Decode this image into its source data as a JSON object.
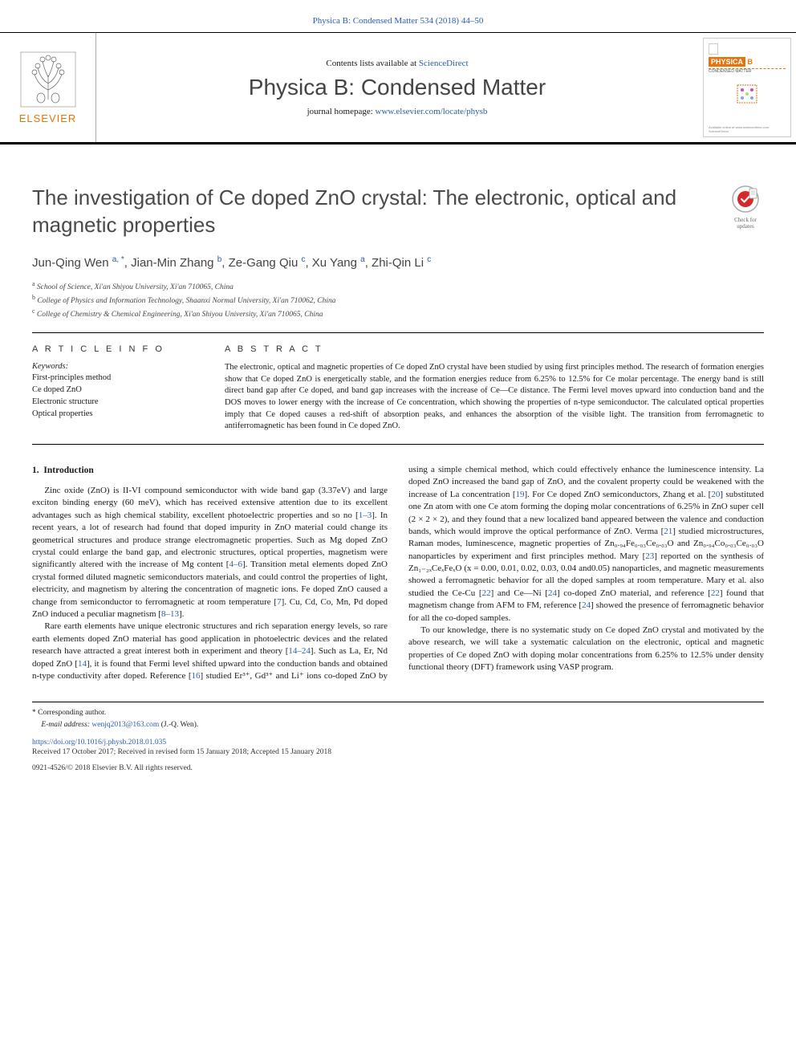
{
  "journal": {
    "reference_line": "Physica B: Condensed Matter 534 (2018) 44–50",
    "contents_prefix": "Contents lists available at ",
    "contents_link": "ScienceDirect",
    "name": "Physica B: Condensed Matter",
    "homepage_prefix": "journal homepage: ",
    "homepage_url": "www.elsevier.com/locate/physb",
    "publisher": "ELSEVIER",
    "cover_label": "PHYSICA"
  },
  "crossmark": {
    "label": "Check for updates"
  },
  "article": {
    "title": "The investigation of Ce doped ZnO crystal: The electronic, optical and magnetic properties",
    "authors_html": "Jun-Qing Wen <sup>a, *</sup>, Jian-Min Zhang <sup>b</sup>, Ze-Gang Qiu <sup>c</sup>, Xu Yang <sup>a</sup>, Zhi-Qin Li <sup>c</sup>",
    "affiliations": [
      {
        "sup": "a",
        "text": "School of Science, Xi'an Shiyou University, Xi'an 710065, China"
      },
      {
        "sup": "b",
        "text": "College of Physics and Information Technology, Shaanxi Normal University, Xi'an 710062, China"
      },
      {
        "sup": "c",
        "text": "College of Chemistry & Chemical Engineering, Xi'an Shiyou University, Xi'an 710065, China"
      }
    ]
  },
  "info": {
    "heading": "A R T I C L E   I N F O",
    "keywords_label": "Keywords:",
    "keywords": [
      "First-principles method",
      "Ce doped ZnO",
      "Electronic structure",
      "Optical properties"
    ]
  },
  "abstract": {
    "heading": "A B S T R A C T",
    "text": "The electronic, optical and magnetic properties of Ce doped ZnO crystal have been studied by using first principles method. The research of formation energies show that Ce doped ZnO is energetically stable, and the formation energies reduce from 6.25% to 12.5% for Ce molar percentage. The energy band is still direct band gap after Ce doped, and band gap increases with the increase of Ce—Ce distance. The Fermi level moves upward into conduction band and the DOS moves to lower energy with the increase of Ce concentration, which showing the properties of n-type semiconductor. The calculated optical properties imply that Ce doped causes a red-shift of absorption peaks, and enhances the absorption of the visible light. The transition from ferromagnetic to antiferromagnetic has been found in Ce doped ZnO."
  },
  "body": {
    "section_number": "1.",
    "section_title": "Introduction",
    "col1": {
      "p1_pre": "Zinc oxide (ZnO) is II-VI compound semiconductor with wide band gap (3.37eV) and large exciton binding energy (60 meV), which has received extensive attention due to its excellent advantages such as high chemical stability, excellent photoelectric properties and so no [",
      "p1_ref1": "1–3",
      "p1_mid1": "]. In recent years, a lot of research had found that doped impurity in ZnO material could change its geometrical structures and produce strange electromagnetic properties. Such as Mg doped ZnO crystal could enlarge the band gap, and electronic structures, optical properties, magnetism were significantly altered with the increase of Mg content [",
      "p1_ref2": "4–6",
      "p1_mid2": "]. Transition metal elements doped ZnO crystal formed diluted magnetic semiconductors materials, and could control the properties of light, electricity, and magnetism by altering the concentration of magnetic ions. Fe doped ZnO caused a change from semiconductor to ferromagnetic at room temperature [",
      "p1_ref3": "7",
      "p1_mid3": "]. Cu, Cd, Co, Mn, Pd doped ZnO induced a peculiar magnetism [",
      "p1_ref4": "8–13",
      "p1_post": "].",
      "p2_pre": "Rare earth elements have unique electronic structures and rich separation energy levels, so rare earth elements doped ZnO material has good application in photoelectric devices and the related research have attracted a great interest both in experiment and theory [",
      "p2_ref1": "14–24",
      "p2_mid1": "]. Such as La, Er, Nd doped ZnO [",
      "p2_ref2": "14",
      "p2_mid2": "], it is found that Fermi level shifted upward into the conduction bands and obtained n-type conductivity after doped. Reference [",
      "p2_ref3": "16",
      "p2_post": "] studied Er³⁺, Gd³⁺ and Li⁺ ions co-doped ZnO by using a"
    },
    "col2": {
      "p1_pre": "simple chemical method, which could effectively enhance the luminescence intensity. La doped ZnO increased the band gap of ZnO, and the covalent property could be weakened with the increase of La concentration [",
      "p1_ref1": "19",
      "p1_mid1": "]. For Ce doped ZnO semiconductors, Zhang et al. [",
      "p1_ref2": "20",
      "p1_mid2": "] substituted one Zn atom with one Ce atom forming the doping molar concentrations of 6.25% in ZnO super cell (2 × 2 × 2), and they found that a new localized band appeared between the valence and conduction bands, which would improve the optical performance of ZnO. Verma [",
      "p1_ref3": "21",
      "p1_mid3": "] studied microstructures, Raman modes, luminescence, magnetic properties of Zn₀.₉₄Fe₀.₀₃Ce₀.₀₃O and Zn₀.₉₄Co₀.₀₃Ce₀.₀₃O nanoparticles by experiment and first principles method. Mary [",
      "p1_ref4": "23",
      "p1_mid4": "] reported on the synthesis of Zn₁₋₂ₓCeₓFeₓO (x = 0.00, 0.01, 0.02, 0.03, 0.04 and0.05) nanoparticles, and magnetic measurements showed a ferromagnetic behavior for all the doped samples at room temperature. Mary et al. also studied the Ce-Cu [",
      "p1_ref5": "22",
      "p1_mid5": "] and Ce—Ni [",
      "p1_ref6": "24",
      "p1_mid6": "] co-doped ZnO material, and reference [",
      "p1_ref7": "22",
      "p1_mid7": "] found that magnetism change from AFM to FM, reference [",
      "p1_ref8": "24",
      "p1_post": "] showed the presence of ferromagnetic behavior for all the co-doped samples.",
      "p2": "To our knowledge, there is no systematic study on Ce doped ZnO crystal and motivated by the above research, we will take a systematic calculation on the electronic, optical and magnetic properties of Ce doped ZnO with doping molar concentrations from 6.25% to 12.5% under density functional theory (DFT) framework using VASP program."
    }
  },
  "footer": {
    "corresponding": "* Corresponding author.",
    "email_label": "E-mail address: ",
    "email": "wenjq2013@163.com",
    "email_suffix": " (J.-Q. Wen).",
    "doi": "https://doi.org/10.1016/j.physb.2018.01.035",
    "dates": "Received 17 October 2017; Received in revised form 15 January 2018; Accepted 15 January 2018",
    "copyright": "0921-4526/© 2018 Elsevier B.V. All rights reserved."
  },
  "colors": {
    "link": "#2a5db0",
    "elsevier_orange": "#e8730c",
    "text": "#1a1a1a",
    "muted": "#444444"
  }
}
